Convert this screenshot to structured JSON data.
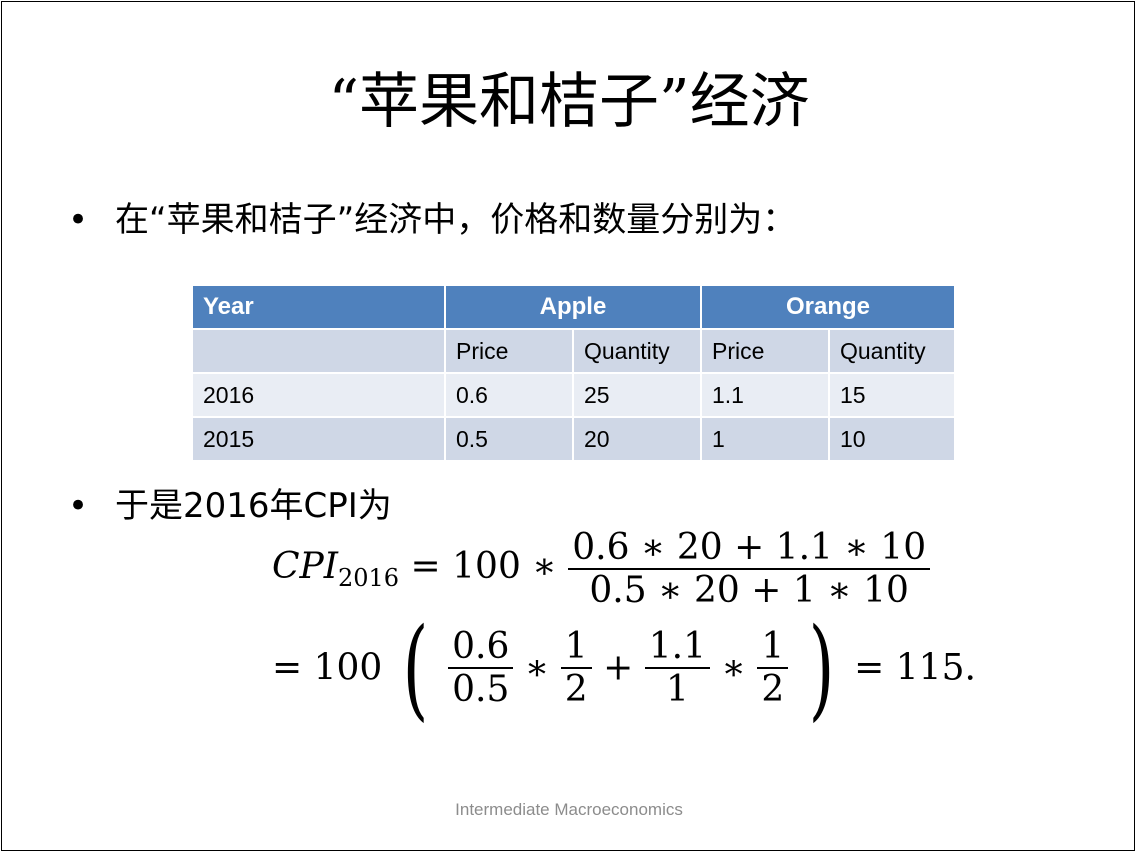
{
  "slide": {
    "title": "“苹果和桔子”经济",
    "bullet1": "在“苹果和桔子”经济中，价格和数量分别为：",
    "bullet2": "于是2016年CPI为",
    "bullet_glyph": "•",
    "footer": "Intermediate Macroeconomics"
  },
  "table": {
    "headers": {
      "year": "Year",
      "apple": "Apple",
      "orange": "Orange"
    },
    "subheaders": [
      "",
      "Price",
      "Quantity",
      "Price",
      "Quantity"
    ],
    "rows": [
      [
        "2016",
        "0.6",
        "25",
        "1.1",
        "15"
      ],
      [
        "2015",
        "0.5",
        "20",
        "1",
        "10"
      ]
    ]
  },
  "formula": {
    "lhs": "CPI",
    "lhs_sub": "2016",
    "eq1": "= 100 ∗",
    "num1": "0.6 ∗ 20 + 1.1 ∗ 10",
    "den1": "0.5 ∗ 20 + 1 ∗ 10",
    "eq2": "= 100",
    "f1_num": "0.6",
    "f1_den": "0.5",
    "star": "∗",
    "f2_num": "1",
    "f2_den": "2",
    "plus": "+",
    "f3_num": "1.1",
    "f3_den": "1",
    "f4_num": "1",
    "f4_den": "2",
    "result": "= 115.",
    "lparen": "(",
    "rparen": ")"
  }
}
